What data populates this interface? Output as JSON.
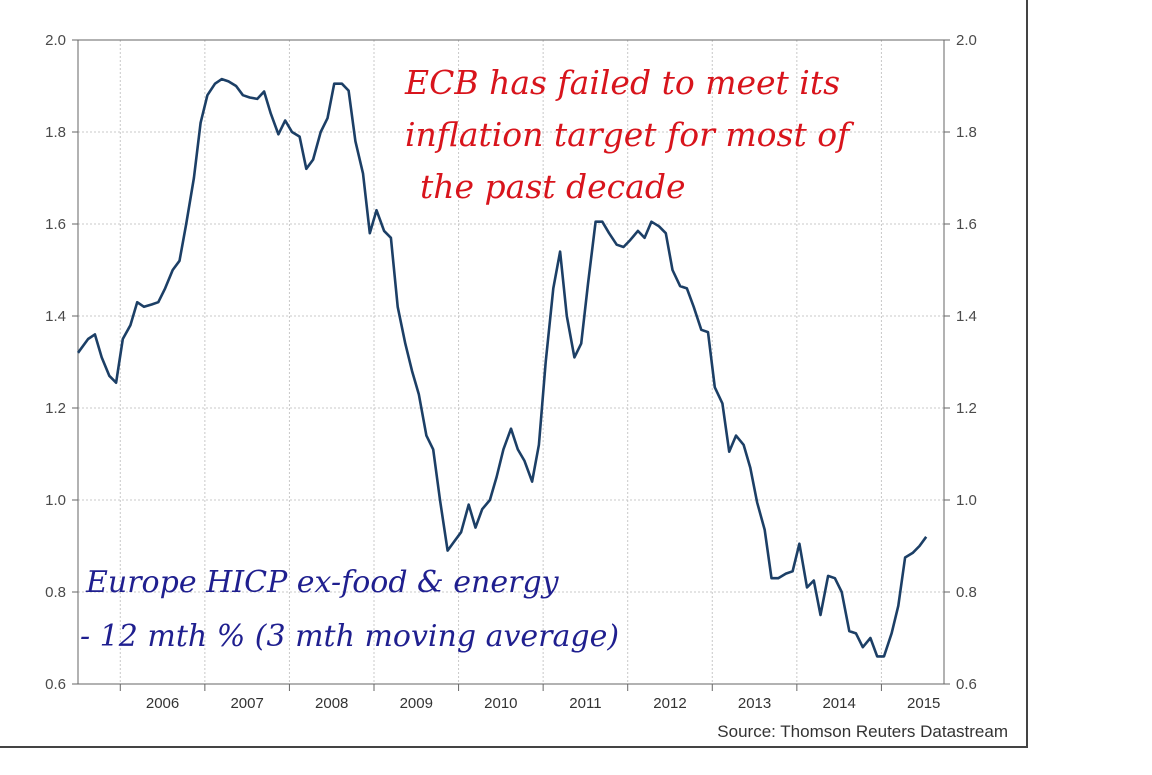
{
  "source": "Source: Thomson Reuters Datastream",
  "annotations": {
    "red": [
      "ECB has failed to meet its",
      "inflation target for most of",
      "the past decade"
    ],
    "blue": [
      "Europe HICP ex-food & energy",
      "- 12 mth % (3 mth moving average)"
    ]
  },
  "colors": {
    "line": "#1c3f66",
    "red_ink": "#d8141c",
    "blue_ink": "#1f1f8f",
    "grid": "#c8c8c8"
  },
  "chart_data": {
    "type": "line",
    "title": "",
    "xlabel": "",
    "ylabel": "",
    "xlim": [
      2005.5,
      2015.74
    ],
    "ylim": [
      0.6,
      2.0
    ],
    "yticks": [
      "0.6",
      "0.8",
      "1.0",
      "1.2",
      "1.4",
      "1.6",
      "1.8",
      "2.0"
    ],
    "xticks": [
      "2006",
      "2007",
      "2008",
      "2009",
      "2010",
      "2011",
      "2012",
      "2013",
      "2014",
      "2015"
    ],
    "grid": true,
    "y_axis_both_sides": true,
    "x": [
      2005.5,
      2005.62,
      2005.7,
      2005.78,
      2005.87,
      2005.95,
      2006.03,
      2006.12,
      2006.2,
      2006.28,
      2006.37,
      2006.45,
      2006.53,
      2006.62,
      2006.7,
      2006.78,
      2006.87,
      2006.95,
      2007.03,
      2007.12,
      2007.2,
      2007.28,
      2007.37,
      2007.45,
      2007.53,
      2007.62,
      2007.7,
      2007.78,
      2007.87,
      2007.95,
      2008.03,
      2008.12,
      2008.2,
      2008.28,
      2008.37,
      2008.45,
      2008.53,
      2008.62,
      2008.7,
      2008.78,
      2008.87,
      2008.95,
      2009.03,
      2009.12,
      2009.2,
      2009.28,
      2009.37,
      2009.45,
      2009.53,
      2009.62,
      2009.7,
      2009.78,
      2009.87,
      2009.95,
      2010.03,
      2010.12,
      2010.2,
      2010.28,
      2010.37,
      2010.45,
      2010.53,
      2010.62,
      2010.7,
      2010.78,
      2010.87,
      2010.95,
      2011.03,
      2011.12,
      2011.2,
      2011.28,
      2011.37,
      2011.45,
      2011.53,
      2011.62,
      2011.7,
      2011.78,
      2011.87,
      2011.95,
      2012.03,
      2012.12,
      2012.2,
      2012.28,
      2012.37,
      2012.45,
      2012.53,
      2012.62,
      2012.7,
      2012.78,
      2012.87,
      2012.95,
      2013.03,
      2013.12,
      2013.2,
      2013.28,
      2013.37,
      2013.45,
      2013.53,
      2013.62,
      2013.7,
      2013.78,
      2013.87,
      2013.95,
      2014.03,
      2014.12,
      2014.2,
      2014.28,
      2014.37,
      2014.45,
      2014.53,
      2014.62,
      2014.7,
      2014.78,
      2014.87,
      2014.95,
      2015.03,
      2015.12,
      2015.2,
      2015.28,
      2015.37,
      2015.45,
      2015.53
    ],
    "series": [
      {
        "name": "",
        "values": [
          1.32,
          1.35,
          1.36,
          1.31,
          1.27,
          1.255,
          1.35,
          1.38,
          1.43,
          1.42,
          1.425,
          1.43,
          1.46,
          1.5,
          1.52,
          1.6,
          1.7,
          1.82,
          1.88,
          1.905,
          1.915,
          1.91,
          1.9,
          1.88,
          1.875,
          1.872,
          1.888,
          1.84,
          1.795,
          1.825,
          1.8,
          1.79,
          1.72,
          1.74,
          1.8,
          1.83,
          1.905,
          1.905,
          1.89,
          1.78,
          1.71,
          1.58,
          1.63,
          1.585,
          1.57,
          1.42,
          1.34,
          1.28,
          1.23,
          1.14,
          1.11,
          1.0,
          0.89,
          0.91,
          0.93,
          0.99,
          0.94,
          0.98,
          1.0,
          1.05,
          1.11,
          1.155,
          1.11,
          1.085,
          1.04,
          1.12,
          1.3,
          1.46,
          1.54,
          1.4,
          1.31,
          1.34,
          1.47,
          1.605,
          1.605,
          1.58,
          1.555,
          1.55,
          1.565,
          1.585,
          1.57,
          1.605,
          1.595,
          1.58,
          1.5,
          1.465,
          1.46,
          1.42,
          1.37,
          1.365,
          1.245,
          1.21,
          1.105,
          1.14,
          1.12,
          1.07,
          0.995,
          0.935,
          0.83,
          0.83,
          0.84,
          0.845,
          0.905,
          0.81,
          0.825,
          0.75,
          0.835,
          0.83,
          0.8,
          0.715,
          0.71,
          0.68,
          0.7,
          0.66,
          0.66,
          0.71,
          0.77,
          0.875,
          0.885,
          0.9,
          0.92
        ]
      }
    ]
  }
}
